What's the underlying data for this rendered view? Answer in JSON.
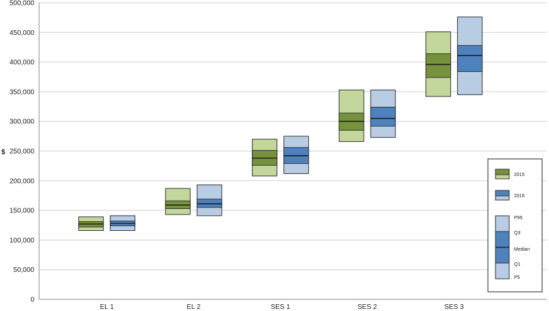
{
  "chart_data": {
    "type": "box",
    "ylabel": "$",
    "ylim": [
      0,
      500000
    ],
    "yticks": [
      0,
      50000,
      100000,
      150000,
      200000,
      250000,
      300000,
      350000,
      400000,
      450000,
      500000
    ],
    "ytick_labels": [
      "0",
      "50,000",
      "100,000",
      "150,000",
      "200,000",
      "250,000",
      "300,000",
      "350,000",
      "400,000",
      "450,000",
      "500,000"
    ],
    "grid": true,
    "legend_position": "right",
    "categories": [
      "EL 1",
      "EL 2",
      "SES 1",
      "SES 2",
      "SES 3"
    ],
    "series": [
      {
        "name": "2015",
        "color_light": "#c3d69b",
        "color_dark": "#76923c",
        "boxes": [
          {
            "p5": 116000,
            "q1": 122000,
            "median": 127000,
            "q3": 131000,
            "p95": 139000
          },
          {
            "p5": 143000,
            "q1": 153000,
            "median": 159000,
            "q3": 166000,
            "p95": 187000
          },
          {
            "p5": 208000,
            "q1": 226000,
            "median": 238000,
            "q3": 251000,
            "p95": 270000
          },
          {
            "p5": 266000,
            "q1": 285000,
            "median": 300000,
            "q3": 314000,
            "p95": 353000
          },
          {
            "p5": 342000,
            "q1": 374000,
            "median": 396000,
            "q3": 414000,
            "p95": 451000
          }
        ]
      },
      {
        "name": "2016",
        "color_light": "#b8cce4",
        "color_dark": "#4f81bd",
        "boxes": [
          {
            "p5": 116000,
            "q1": 124000,
            "median": 128000,
            "q3": 132000,
            "p95": 141000
          },
          {
            "p5": 141000,
            "q1": 155000,
            "median": 161000,
            "q3": 169000,
            "p95": 193000
          },
          {
            "p5": 212000,
            "q1": 229000,
            "median": 242000,
            "q3": 256000,
            "p95": 275000
          },
          {
            "p5": 273000,
            "q1": 292000,
            "median": 305000,
            "q3": 324000,
            "p95": 353000
          },
          {
            "p5": 345000,
            "q1": 384000,
            "median": 411000,
            "q3": 428000,
            "p95": 476000
          }
        ]
      }
    ],
    "legend": {
      "series_labels": [
        "2015",
        "2016"
      ],
      "stat_labels": [
        "P95",
        "Q3",
        "Median",
        "Q1",
        "P5"
      ]
    }
  }
}
